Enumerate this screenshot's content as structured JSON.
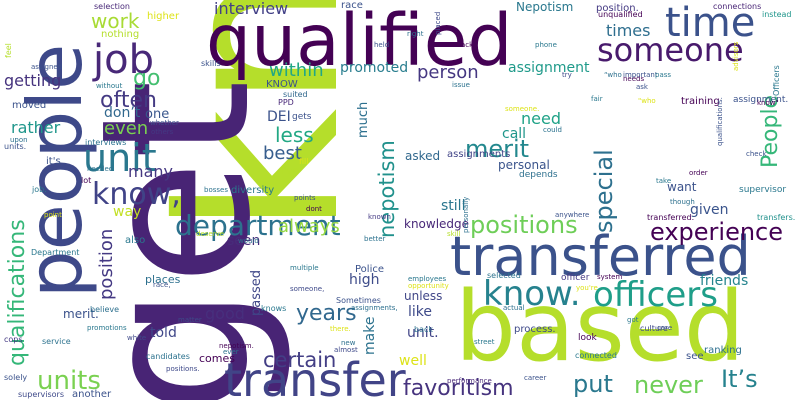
{
  "words": [
    {
      "text": "know",
      "color": "#b5de2b"
    },
    {
      "text": "get",
      "color": "#482475"
    },
    {
      "text": "people",
      "color": "#3e4989"
    },
    {
      "text": "qualified",
      "color": "#440154"
    },
    {
      "text": "based",
      "color": "#b5de2b"
    },
    {
      "text": "transferred",
      "color": "#3b528b"
    },
    {
      "text": "transfer",
      "color": "#414487"
    },
    {
      "text": "officers",
      "color": "#1f9e89"
    },
    {
      "text": "know.",
      "color": "#26828e"
    },
    {
      "text": "unit",
      "color": "#2a788e"
    },
    {
      "text": "job",
      "color": "#482878"
    },
    {
      "text": "time",
      "color": "#3b528b"
    },
    {
      "text": "someone",
      "color": "#481a6c"
    },
    {
      "text": "department",
      "color": "#2c728e"
    },
    {
      "text": "positions",
      "color": "#6ece58"
    },
    {
      "text": "know,",
      "color": "#404387"
    },
    {
      "text": "qualifications",
      "color": "#35b779"
    },
    {
      "text": "units",
      "color": "#7ad151"
    },
    {
      "text": "favoritism",
      "color": "#46337e"
    },
    {
      "text": "years",
      "color": "#31688e"
    },
    {
      "text": "certain",
      "color": "#433e85"
    },
    {
      "text": "It’s",
      "color": "#26828e"
    },
    {
      "text": "never",
      "color": "#6ece58"
    },
    {
      "text": "put",
      "color": "#2a788e"
    },
    {
      "text": "merit",
      "color": "#23888e"
    },
    {
      "text": "experience",
      "color": "#440154"
    },
    {
      "text": "special",
      "color": "#2d708e"
    },
    {
      "text": "People",
      "color": "#35b779"
    },
    {
      "text": "nepotism",
      "color": "#21918c"
    },
    {
      "text": "often",
      "color": "#443a83"
    },
    {
      "text": "go",
      "color": "#44bf70"
    },
    {
      "text": "work",
      "color": "#a8db34"
    },
    {
      "text": "interview",
      "color": "#424086"
    },
    {
      "text": "within",
      "color": "#22a785"
    },
    {
      "text": "person",
      "color": "#453781"
    },
    {
      "text": "times",
      "color": "#2e6e8e"
    },
    {
      "text": "assignment",
      "color": "#1f9a8a"
    },
    {
      "text": "promoted",
      "color": "#287d8e"
    },
    {
      "text": "less",
      "color": "#22a884"
    },
    {
      "text": "best",
      "color": "#365d8d"
    },
    {
      "text": "many",
      "color": "#453882"
    },
    {
      "text": "even",
      "color": "#7ad151"
    },
    {
      "text": "rather",
      "color": "#1f968b"
    },
    {
      "text": "getting",
      "color": "#46337e"
    },
    {
      "text": "position",
      "color": "#443983"
    },
    {
      "text": "way",
      "color": "#c2df23"
    },
    {
      "text": "seen",
      "color": "#472c7a"
    },
    {
      "text": "always",
      "color": "#95d840"
    },
    {
      "text": "good",
      "color": "#472f7d"
    },
    {
      "text": "told",
      "color": "#3f4788"
    },
    {
      "text": "high",
      "color": "#3e4c8a"
    },
    {
      "text": "make",
      "color": "#2c728e"
    },
    {
      "text": "like",
      "color": "#3e4a89"
    },
    {
      "text": "unit.",
      "color": "#414487"
    },
    {
      "text": "still",
      "color": "#2a768e"
    },
    {
      "text": "given",
      "color": "#3a548c"
    },
    {
      "text": "want",
      "color": "#3b528b"
    },
    {
      "text": "friends",
      "color": "#25848e"
    },
    {
      "text": "need",
      "color": "#1fa287"
    },
    {
      "text": "call",
      "color": "#1f968b"
    },
    {
      "text": "DEI",
      "color": "#3b528b"
    },
    {
      "text": "don’t",
      "color": "#31688e"
    },
    {
      "text": "one",
      "color": "#39568c"
    },
    {
      "text": "merit.",
      "color": "#3b528b"
    },
    {
      "text": "well",
      "color": "#dde318"
    },
    {
      "text": "passed",
      "color": "#3f4788"
    },
    {
      "text": "places",
      "color": "#2d708e"
    },
    {
      "text": "comes",
      "color": "#440154"
    },
    {
      "text": "unless",
      "color": "#404688"
    },
    {
      "text": "Police",
      "color": "#3b528b"
    },
    {
      "text": "diversity",
      "color": "#2a788e"
    },
    {
      "text": "knowledge",
      "color": "#482878"
    },
    {
      "text": "much",
      "color": "#2d708e"
    },
    {
      "text": "personal",
      "color": "#3a548c"
    },
    {
      "text": "depends",
      "color": "#2d708e"
    },
    {
      "text": "asked",
      "color": "#31688e"
    },
    {
      "text": "Nepotism",
      "color": "#2a788e"
    },
    {
      "text": "position.",
      "color": "#443983"
    },
    {
      "text": "unqualified",
      "color": "#440154"
    },
    {
      "text": "connections",
      "color": "#482475"
    },
    {
      "text": "instead",
      "color": "#1f968b"
    },
    {
      "text": "Officers",
      "color": "#2a788e"
    },
    {
      "text": "training",
      "color": "#440154"
    },
    {
      "text": "assignment.",
      "color": "#3b528b"
    },
    {
      "text": "supervisor",
      "color": "#2a788e"
    },
    {
      "text": "transfers.",
      "color": "#21918c"
    },
    {
      "text": "ranking",
      "color": "#2d708e"
    },
    {
      "text": "see",
      "color": "#3b528b"
    },
    {
      "text": "process.",
      "color": "#3e4989"
    },
    {
      "text": "officer",
      "color": "#443983"
    },
    {
      "text": "selected",
      "color": "#2c728e"
    },
    {
      "text": "Sometimes",
      "color": "#3b528b"
    },
    {
      "text": "knows",
      "color": "#2a788e"
    },
    {
      "text": "another",
      "color": "#3b528b"
    },
    {
      "text": "believe",
      "color": "#2d708e"
    },
    {
      "text": "also",
      "color": "#2a788e"
    },
    {
      "text": "nothing",
      "color": "#b5de2b"
    },
    {
      "text": "higher",
      "color": "#dde318"
    },
    {
      "text": "race",
      "color": "#3b528b"
    },
    {
      "text": "KNOW",
      "color": "#3b528b"
    },
    {
      "text": "moved",
      "color": "#3b528b"
    },
    {
      "text": "interviews",
      "color": "#2c728e"
    },
    {
      "text": "selection",
      "color": "#482878"
    },
    {
      "text": "units.",
      "color": "#3b528b"
    },
    {
      "text": "job.",
      "color": "#2a788e"
    },
    {
      "text": "cops",
      "color": "#443983"
    },
    {
      "text": "solely",
      "color": "#3b528b"
    },
    {
      "text": "supervisors",
      "color": "#3e4989"
    },
    {
      "text": "Department",
      "color": "#2a788e"
    },
    {
      "text": "service",
      "color": "#2c728e"
    },
    {
      "text": "skills",
      "color": "#3b528b"
    },
    {
      "text": "assignments",
      "color": "#414487"
    },
    {
      "text": "assignments,",
      "color": "#2d708e"
    },
    {
      "text": "I've",
      "color": "#b5de2b"
    },
    {
      "text": "gets",
      "color": "#3b528b"
    },
    {
      "text": "fill",
      "color": "#dde318"
    },
    {
      "text": "PPD",
      "color": "#482878"
    },
    {
      "text": "suited",
      "color": "#31688e"
    },
    {
      "text": "candidates",
      "color": "#2c728e"
    },
    {
      "text": "performance",
      "color": "#482878"
    },
    {
      "text": "career",
      "color": "#3b528b"
    },
    {
      "text": "street",
      "color": "#2a788e"
    },
    {
      "text": "culture",
      "color": "#3e4989"
    },
    {
      "text": "look",
      "color": "#440154"
    },
    {
      "text": "back",
      "color": "#2d708e"
    },
    {
      "text": "connected",
      "color": "#2a788e"
    },
    {
      "text": "anywhere",
      "color": "#3b528b"
    },
    {
      "text": "better",
      "color": "#2c728e"
    },
    {
      "text": "deserve",
      "color": "#b5de2b"
    },
    {
      "text": "would",
      "color": "#2d708e"
    },
    {
      "text": "matter",
      "color": "#3e4989"
    },
    {
      "text": "someone.",
      "color": "#dde318"
    },
    {
      "text": "race,",
      "color": "#3b528b"
    },
    {
      "text": "multiple",
      "color": "#2a788e"
    },
    {
      "text": "nepotism.",
      "color": "#440154"
    },
    {
      "text": "positions.",
      "color": "#3e4989"
    },
    {
      "text": "ever",
      "color": "#2c728e"
    },
    {
      "text": "lot",
      "color": "#440154"
    },
    {
      "text": "feel",
      "color": "#b5de2b"
    },
    {
      "text": "assigned",
      "color": "#3b528b"
    },
    {
      "text": "without",
      "color": "#2a788e"
    },
    {
      "text": "upon",
      "color": "#2d708e"
    },
    {
      "text": "others",
      "color": "#443983"
    },
    {
      "text": "whether",
      "color": "#3e4989"
    },
    {
      "text": "needed",
      "color": "#2c728e"
    },
    {
      "text": "transferred.",
      "color": "#440154"
    },
    {
      "text": "check",
      "color": "#3b528b"
    },
    {
      "text": "order",
      "color": "#440154"
    },
    {
      "text": "take",
      "color": "#2a788e"
    },
    {
      "text": "though",
      "color": "#2d708e"
    },
    {
      "text": "qualifications.",
      "color": "#3b528b"
    },
    {
      "text": "advisors",
      "color": "#dde318"
    },
    {
      "text": "know\"",
      "color": "#440154"
    },
    {
      "text": "ask",
      "color": "#3b528b"
    },
    {
      "text": "fair",
      "color": "#2a788e"
    },
    {
      "text": "could",
      "color": "#2c728e"
    },
    {
      "text": "someone,",
      "color": "#3e4989"
    },
    {
      "text": "personally",
      "color": "#2d708e"
    },
    {
      "text": "skill",
      "color": "#b5de2b"
    },
    {
      "text": "known",
      "color": "#443983"
    },
    {
      "text": "lack",
      "color": "#440154"
    },
    {
      "text": "phone",
      "color": "#2a788e"
    },
    {
      "text": "held",
      "color": "#3b528b"
    },
    {
      "text": "right",
      "color": "#2d708e"
    },
    {
      "text": "placed",
      "color": "#3e4989"
    },
    {
      "text": "issue",
      "color": "#2c728e"
    },
    {
      "text": "needs",
      "color": "#440154"
    },
    {
      "text": "important",
      "color": "#3b528b"
    },
    {
      "text": "pass",
      "color": "#2a788e"
    },
    {
      "text": "try",
      "color": "#3e4989"
    },
    {
      "text": "“who",
      "color": "#2d708e"
    },
    {
      "text": "\"who",
      "color": "#dde318"
    },
    {
      "text": "employees",
      "color": "#2a788e"
    },
    {
      "text": "opportunity",
      "color": "#dde318"
    },
    {
      "text": "you're",
      "color": "#dde318"
    },
    {
      "text": "actual",
      "color": "#2d708e"
    },
    {
      "text": "system",
      "color": "#440154"
    },
    {
      "text": "promotions",
      "color": "#2a788e"
    },
    {
      "text": "white",
      "color": "#3e4989"
    },
    {
      "text": "bosses",
      "color": "#2c728e"
    },
    {
      "text": "points",
      "color": "#3b528b"
    },
    {
      "text": "dont",
      "color": "#440154"
    },
    {
      "text": "new",
      "color": "#2d708e"
    },
    {
      "text": "almost",
      "color": "#3e4989"
    },
    {
      "text": "care",
      "color": "#3b528b"
    },
    {
      "text": "there.",
      "color": "#dde318"
    },
    {
      "text": "point",
      "color": "#dde318"
    },
    {
      "text": "got",
      "color": "#2a788e"
    },
    {
      "text": "it's",
      "color": "#3b528b"
    }
  ]
}
